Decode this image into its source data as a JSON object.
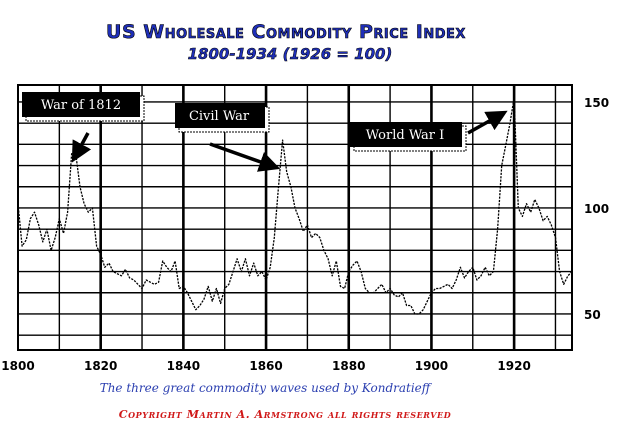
{
  "chart_data": {
    "type": "line",
    "title": "US Wholesale Commodity Price Index",
    "subtitle": "1800-1934  (1926 = 100)",
    "caption": "The three great commodity waves used by Kondratieff",
    "copyright": "Copyright Martin A. Armstrong all rights reserved",
    "xlabel": "",
    "ylabel": "",
    "xlim": [
      1800,
      1934
    ],
    "ylim": [
      33,
      158
    ],
    "x_ticks": [
      "1800",
      "1820",
      "1840",
      "1860",
      "1880",
      "1900",
      "1920"
    ],
    "x_tick_values": [
      1800,
      1820,
      1840,
      1860,
      1880,
      1900,
      1920
    ],
    "y_ticks": [
      "50",
      "100",
      "150"
    ],
    "y_tick_values": [
      50,
      100,
      150
    ],
    "grid": "on",
    "colors": {
      "line": "#000000",
      "title": "#1f2fb8",
      "caption": "#2b3fb0",
      "copyright": "#d01818",
      "annotation_bg": "#000000"
    },
    "annotations": [
      {
        "text": "War of 1812",
        "points_to": [
          1813,
          125
        ]
      },
      {
        "text": "Civil War",
        "points_to": [
          1864,
          120
        ]
      },
      {
        "text": "World War I",
        "points_to": [
          1918,
          145
        ]
      }
    ],
    "series": [
      {
        "x": [
          1800,
          1801,
          1802,
          1803,
          1804,
          1805,
          1806,
          1807,
          1808,
          1809,
          1810,
          1811,
          1812,
          1813,
          1814,
          1815,
          1816,
          1817,
          1818,
          1819,
          1820,
          1821,
          1822,
          1823,
          1824,
          1825,
          1826,
          1827,
          1828,
          1829,
          1830,
          1831,
          1832,
          1833,
          1834,
          1835,
          1836,
          1837,
          1838,
          1839,
          1840,
          1841,
          1842,
          1843,
          1844,
          1845,
          1846,
          1847,
          1848,
          1849,
          1850,
          1851,
          1852,
          1853,
          1854,
          1855,
          1856,
          1857,
          1858,
          1859,
          1860,
          1861,
          1862,
          1863,
          1864,
          1865,
          1866,
          1867,
          1868,
          1869,
          1870,
          1871,
          1872,
          1873,
          1874,
          1875,
          1876,
          1877,
          1878,
          1879,
          1880,
          1881,
          1882,
          1883,
          1884,
          1885,
          1886,
          1887,
          1888,
          1889,
          1890,
          1891,
          1892,
          1893,
          1894,
          1895,
          1896,
          1897,
          1898,
          1899,
          1900,
          1901,
          1902,
          1903,
          1904,
          1905,
          1906,
          1907,
          1908,
          1909,
          1910,
          1911,
          1912,
          1913,
          1914,
          1915,
          1916,
          1917,
          1918,
          1919,
          1920,
          1921,
          1922,
          1923,
          1924,
          1925,
          1926,
          1927,
          1928,
          1929,
          1930,
          1931,
          1932,
          1933,
          1934
        ],
        "values": [
          102,
          82,
          85,
          95,
          98,
          92,
          84,
          90,
          80,
          86,
          95,
          88,
          98,
          126,
          125,
          110,
          102,
          98,
          100,
          82,
          78,
          72,
          74,
          70,
          69,
          68,
          71,
          67,
          66,
          64,
          62,
          66,
          65,
          64,
          65,
          75,
          72,
          70,
          75,
          62,
          63,
          60,
          56,
          52,
          54,
          57,
          63,
          56,
          62,
          55,
          62,
          64,
          70,
          76,
          70,
          76,
          68,
          74,
          68,
          70,
          66,
          72,
          86,
          110,
          132,
          117,
          110,
          100,
          95,
          89,
          92,
          86,
          88,
          86,
          80,
          76,
          68,
          75,
          63,
          62,
          70,
          73,
          75,
          70,
          62,
          60,
          60,
          62,
          64,
          60,
          62,
          59,
          58,
          60,
          54,
          54,
          50,
          50,
          52,
          56,
          60,
          62,
          62,
          63,
          64,
          62,
          66,
          72,
          67,
          70,
          72,
          66,
          68,
          72,
          68,
          70,
          90,
          120,
          130,
          140,
          152,
          100,
          96,
          102,
          98,
          104,
          100,
          94,
          96,
          92,
          86,
          70,
          64,
          68,
          70
        ]
      }
    ]
  }
}
